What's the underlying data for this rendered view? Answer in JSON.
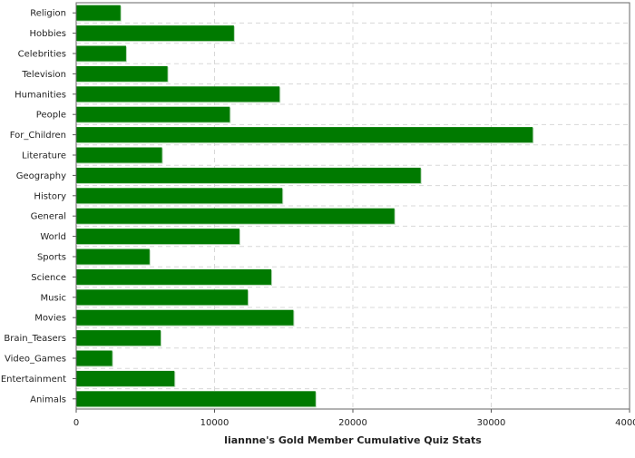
{
  "chart_data": {
    "type": "bar",
    "orientation": "horizontal",
    "xlabel": "liannne's Gold Member Cumulative Quiz Stats",
    "xlim": [
      0,
      40000
    ],
    "xticks": [
      "0",
      "10000",
      "20000",
      "30000",
      "40000"
    ],
    "grid": true,
    "bar_color": "#007a00",
    "categories": [
      "Religion",
      "Hobbies",
      "Celebrities",
      "Television",
      "Humanities",
      "People",
      "For_Children",
      "Literature",
      "Geography",
      "History",
      "General",
      "World",
      "Sports",
      "Science",
      "Music",
      "Movies",
      "Brain_Teasers",
      "Video_Games",
      "Entertainment",
      "Animals"
    ],
    "values": [
      3200,
      11400,
      3600,
      6600,
      14700,
      11100,
      33000,
      6200,
      24900,
      14900,
      23000,
      11800,
      5300,
      14100,
      12400,
      15700,
      6100,
      2600,
      7100,
      17300
    ]
  }
}
